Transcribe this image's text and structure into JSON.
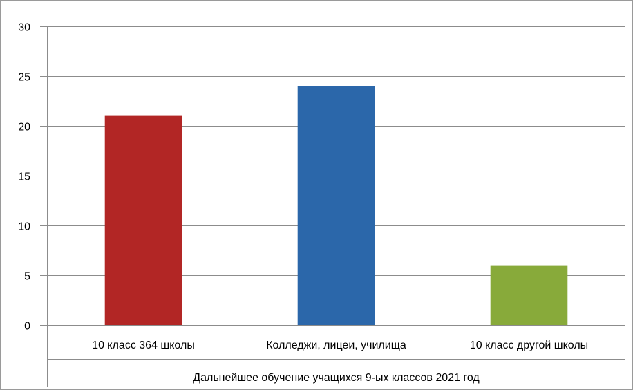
{
  "chart_data": {
    "type": "bar",
    "categories": [
      "10 класс 364 школы",
      "Колледжи,  лицеи,  училища",
      "10 класс другой школы"
    ],
    "group_label": "Дальнейшее  обучение  учащихся 9-ых классов 2021 год",
    "values": [
      21,
      24,
      6
    ],
    "colors": [
      "#b22625",
      "#2b67aa",
      "#88aa3a"
    ],
    "ylim": [
      0,
      30
    ],
    "yticks": [
      0,
      5,
      10,
      15,
      20,
      25,
      30
    ],
    "grid": true,
    "legend": "none"
  }
}
